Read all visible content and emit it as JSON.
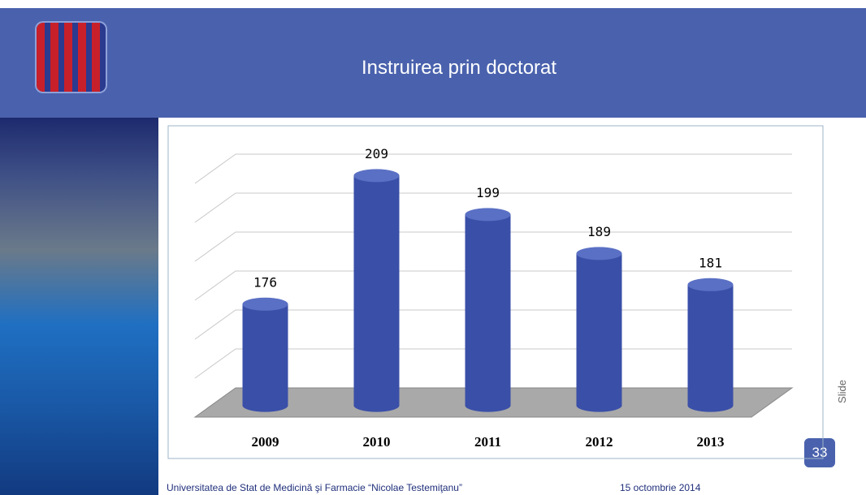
{
  "slide": {
    "title": "Instruirea prin doctorat",
    "footer_left": "Universitatea de Stat de Medicină şi Farmacie “Nicolae Testemiţanu”",
    "footer_right": "15 octombrie 2014",
    "slide_label": "Slide",
    "number": "33"
  },
  "chart_data": {
    "type": "bar",
    "categories": [
      "2009",
      "2010",
      "2011",
      "2012",
      "2013"
    ],
    "values": [
      176,
      209,
      199,
      189,
      181
    ],
    "color": "#3a4fa8",
    "ylim": [
      150,
      210
    ],
    "yticks": [
      150,
      160,
      170,
      180,
      190,
      200,
      210
    ],
    "grid": true
  }
}
